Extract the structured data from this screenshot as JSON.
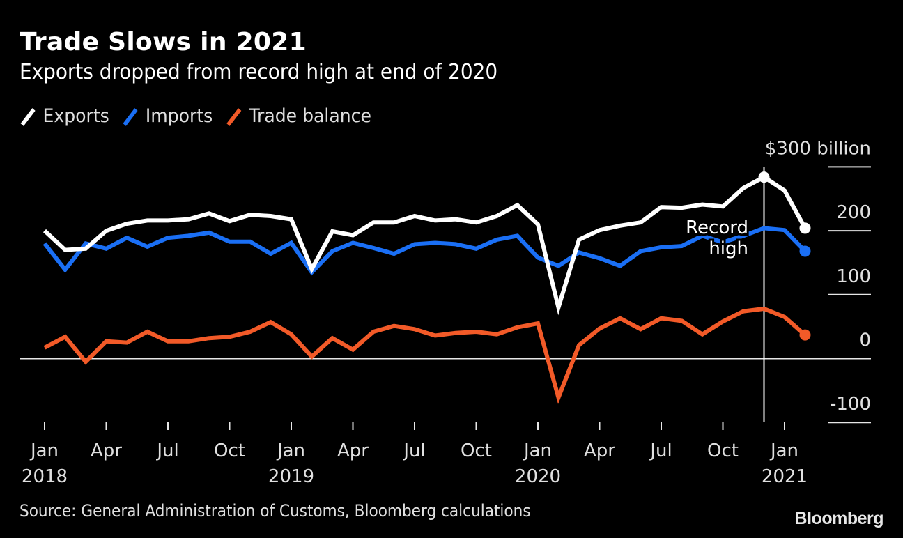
{
  "header": {
    "title": "Trade Slows in 2021",
    "subtitle": "Exports dropped from record high at end of 2020"
  },
  "legend": [
    {
      "label": "Exports",
      "color": "#ffffff"
    },
    {
      "label": "Imports",
      "color": "#1a6ff5"
    },
    {
      "label": "Trade balance",
      "color": "#f25a28"
    }
  ],
  "footer": {
    "source": "Source: General Administration of Customs, Bloomberg calculations",
    "logo": "Bloomberg"
  },
  "chart_data": {
    "type": "line",
    "title": "Trade Slows in 2021",
    "subtitle": "Exports dropped from record high at end of 2020",
    "ylabel": "$ billion",
    "y_unit_label": "$300 billion",
    "ylim": [
      -100,
      300
    ],
    "yticks": [
      300,
      200,
      100,
      0,
      -100
    ],
    "ytick_labels": [
      "$300 billion",
      "200",
      "100",
      "0",
      "-100"
    ],
    "legend_position": "top-left",
    "grid": "y (right-side stubs), zero line full width",
    "x": [
      "2018-01",
      "2018-02",
      "2018-03",
      "2018-04",
      "2018-05",
      "2018-06",
      "2018-07",
      "2018-08",
      "2018-09",
      "2018-10",
      "2018-11",
      "2018-12",
      "2019-01",
      "2019-02",
      "2019-03",
      "2019-04",
      "2019-05",
      "2019-06",
      "2019-07",
      "2019-08",
      "2019-09",
      "2019-10",
      "2019-11",
      "2019-12",
      "2020-01",
      "2020-02",
      "2020-03",
      "2020-04",
      "2020-05",
      "2020-06",
      "2020-07",
      "2020-08",
      "2020-09",
      "2020-10",
      "2020-11",
      "2020-12",
      "2021-01",
      "2021-02"
    ],
    "xticks": [
      {
        "month_index": 0,
        "label": "Jan",
        "year": "2018"
      },
      {
        "month_index": 3,
        "label": "Apr",
        "year": ""
      },
      {
        "month_index": 6,
        "label": "Jul",
        "year": ""
      },
      {
        "month_index": 9,
        "label": "Oct",
        "year": ""
      },
      {
        "month_index": 12,
        "label": "Jan",
        "year": "2019"
      },
      {
        "month_index": 15,
        "label": "Apr",
        "year": ""
      },
      {
        "month_index": 18,
        "label": "Jul",
        "year": ""
      },
      {
        "month_index": 21,
        "label": "Oct",
        "year": ""
      },
      {
        "month_index": 24,
        "label": "Jan",
        "year": "2020"
      },
      {
        "month_index": 27,
        "label": "Apr",
        "year": ""
      },
      {
        "month_index": 30,
        "label": "Jul",
        "year": ""
      },
      {
        "month_index": 33,
        "label": "Oct",
        "year": ""
      },
      {
        "month_index": 36,
        "label": "Jan",
        "year": "2021"
      }
    ],
    "series": [
      {
        "name": "Exports",
        "color": "#ffffff",
        "end_marker": true,
        "values": [
          200,
          170,
          172,
          200,
          211,
          216,
          216,
          218,
          227,
          215,
          225,
          223,
          218,
          140,
          199,
          193,
          213,
          213,
          223,
          216,
          218,
          213,
          223,
          240,
          210,
          80,
          186,
          201,
          208,
          213,
          237,
          236,
          241,
          238,
          267,
          284,
          263,
          204
        ]
      },
      {
        "name": "Imports",
        "color": "#1a6ff5",
        "end_marker": true,
        "values": [
          180,
          139,
          180,
          172,
          189,
          175,
          189,
          192,
          197,
          183,
          183,
          164,
          181,
          135,
          168,
          181,
          173,
          164,
          179,
          181,
          179,
          172,
          186,
          192,
          158,
          145,
          166,
          157,
          145,
          168,
          174,
          176,
          192,
          182,
          192,
          204,
          201,
          168
        ]
      },
      {
        "name": "Trade balance",
        "color": "#f25a28",
        "end_marker": true,
        "values": [
          17,
          34,
          -5,
          27,
          25,
          42,
          27,
          27,
          32,
          34,
          42,
          57,
          38,
          3,
          32,
          14,
          42,
          51,
          46,
          36,
          40,
          42,
          38,
          49,
          55,
          -61,
          21,
          47,
          63,
          46,
          63,
          59,
          38,
          58,
          74,
          78,
          65,
          37
        ]
      }
    ],
    "annotations": [
      {
        "text_lines": [
          "Record",
          "high"
        ],
        "at": "2020-12",
        "series": "Exports",
        "value": 284,
        "marker": "dot with vertical reference line"
      }
    ]
  }
}
